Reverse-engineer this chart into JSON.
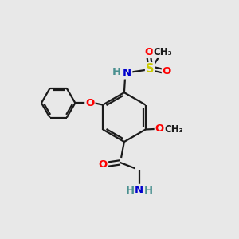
{
  "background_color": "#e8e8e8",
  "bond_color": "#1a1a1a",
  "atom_colors": {
    "O": "#ff0000",
    "N": "#0000cc",
    "S": "#cccc00",
    "H": "#4a9090",
    "C": "#1a1a1a"
  },
  "fig_width": 3.0,
  "fig_height": 3.0,
  "dpi": 100
}
